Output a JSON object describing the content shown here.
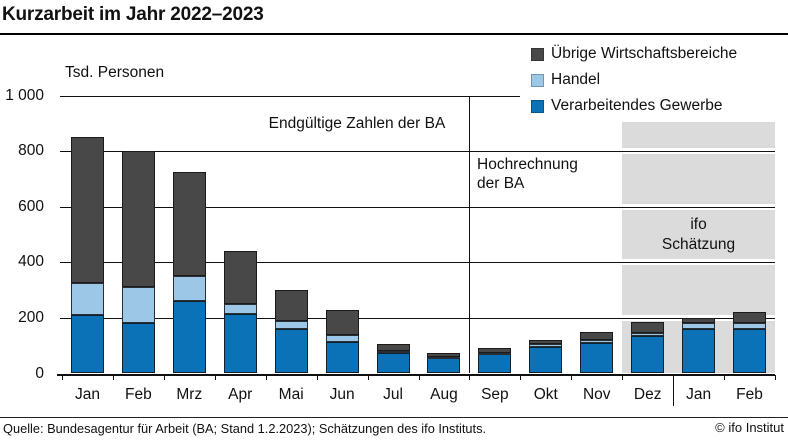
{
  "title": "Kurzarbeit im Jahr 2022–2023",
  "unit_label": "Tsd. Personen",
  "legend": [
    {
      "label": "Übrige Wirtschaftsbereiche",
      "color": "#484848"
    },
    {
      "label": "Handel",
      "color": "#9dc7e6"
    },
    {
      "label": "Verarbeitendes Gewerbe",
      "color": "#0b72b8"
    }
  ],
  "annotations": {
    "final_numbers": "Endgültige Zahlen der BA",
    "projection_line1": "Hochrechnung",
    "projection_line2": "der BA",
    "ifo_line1": "ifo",
    "ifo_line2": "Schätzung"
  },
  "footer": {
    "source": "Quelle: Bundesagentur für Arbeit (BA; Stand 1.2.2023); Schätzungen des ifo Instituts.",
    "copyright": "© ifo Institut"
  },
  "chart_data": {
    "type": "bar",
    "stacked": true,
    "title": "Kurzarbeit im Jahr 2022–2023",
    "ylabel": "Tsd. Personen",
    "ylim": [
      0,
      1000
    ],
    "grid": true,
    "legend_position": "top-right",
    "yticks": [
      0,
      200,
      400,
      600,
      800,
      1000
    ],
    "ytick_labels": [
      "0",
      "200",
      "400",
      "600",
      "800",
      "1 000"
    ],
    "categories": [
      "Jan",
      "Feb",
      "Mrz",
      "Apr",
      "Mai",
      "Jun",
      "Jul",
      "Aug",
      "Sep",
      "Okt",
      "Nov",
      "Dez",
      "Jan",
      "Feb"
    ],
    "series": [
      {
        "name": "Verarbeitendes Gewerbe",
        "color": "#0b72b8",
        "values": [
          210,
          180,
          260,
          215,
          160,
          115,
          75,
          55,
          70,
          95,
          110,
          135,
          160,
          160
        ]
      },
      {
        "name": "Handel",
        "color": "#9dc7e6",
        "values": [
          115,
          130,
          90,
          35,
          30,
          25,
          5,
          5,
          5,
          10,
          10,
          10,
          20,
          20
        ]
      },
      {
        "name": "Übrige Wirtschaftsbereiche",
        "color": "#484848",
        "values": [
          525,
          490,
          375,
          190,
          110,
          90,
          25,
          15,
          15,
          15,
          30,
          40,
          20,
          40
        ]
      }
    ],
    "totals": [
      850,
      800,
      725,
      440,
      300,
      230,
      105,
      75,
      90,
      120,
      150,
      185,
      200,
      220
    ],
    "regions": {
      "divider_after_category_index": 7,
      "shaded_from_category_index": 11,
      "shaded_top_value": 905,
      "year_separator_after_category_index": 11
    }
  }
}
